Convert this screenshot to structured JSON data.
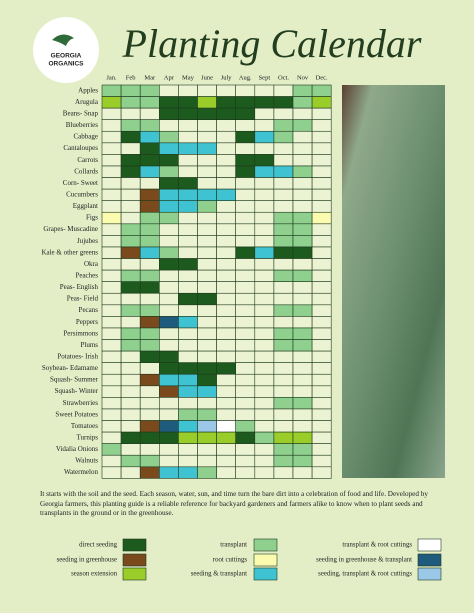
{
  "header": {
    "logo": [
      "GEORGIA",
      "ORGANICS"
    ],
    "title": "Planting Calendar"
  },
  "calendar": {
    "months": [
      "Jan.",
      "Feb",
      "Mar",
      "Apr",
      "May",
      "June",
      "July",
      "Aug.",
      "Sept",
      "Oct.",
      "Nov",
      "Dec."
    ],
    "empty_color": "#ecf3d2",
    "crops": [
      {
        "name": "Apples",
        "cells": [
          1,
          1,
          1,
          null,
          null,
          null,
          null,
          null,
          null,
          null,
          1,
          1
        ]
      },
      {
        "name": "Arugula",
        "cells": [
          6,
          1,
          1,
          0,
          0,
          6,
          0,
          0,
          0,
          0,
          1,
          6
        ]
      },
      {
        "name": "Beans- Snap",
        "cells": [
          null,
          null,
          null,
          0,
          0,
          0,
          0,
          0,
          null,
          null,
          null,
          null
        ]
      },
      {
        "name": "Blueberries",
        "cells": [
          null,
          1,
          1,
          null,
          null,
          null,
          null,
          null,
          null,
          1,
          1,
          null
        ]
      },
      {
        "name": "Cabbage",
        "cells": [
          null,
          0,
          7,
          1,
          null,
          null,
          null,
          0,
          7,
          1,
          null,
          null
        ]
      },
      {
        "name": "Cantaloupes",
        "cells": [
          null,
          null,
          0,
          7,
          7,
          7,
          null,
          null,
          null,
          null,
          null,
          null
        ]
      },
      {
        "name": "Carrots",
        "cells": [
          null,
          0,
          0,
          0,
          null,
          null,
          null,
          0,
          0,
          null,
          null,
          null
        ]
      },
      {
        "name": "Collards",
        "cells": [
          null,
          0,
          7,
          1,
          null,
          null,
          null,
          0,
          7,
          7,
          1,
          null
        ]
      },
      {
        "name": "Corn- Sweet",
        "cells": [
          null,
          null,
          null,
          0,
          0,
          null,
          null,
          null,
          null,
          null,
          null,
          null
        ]
      },
      {
        "name": "Cucumbers",
        "cells": [
          null,
          null,
          3,
          7,
          7,
          7,
          7,
          null,
          null,
          null,
          null,
          null
        ]
      },
      {
        "name": "Eggplant",
        "cells": [
          null,
          null,
          3,
          7,
          7,
          1,
          null,
          null,
          null,
          null,
          null,
          null
        ]
      },
      {
        "name": "Figs",
        "cells": [
          4,
          null,
          1,
          1,
          null,
          null,
          null,
          null,
          null,
          1,
          1,
          4
        ]
      },
      {
        "name": "Grapes- Muscadine",
        "cells": [
          null,
          1,
          1,
          null,
          null,
          null,
          null,
          null,
          null,
          1,
          1,
          null
        ]
      },
      {
        "name": "Jujubes",
        "cells": [
          null,
          1,
          1,
          null,
          null,
          null,
          null,
          null,
          null,
          1,
          1,
          null
        ]
      },
      {
        "name": "Kale & other greens",
        "cells": [
          null,
          3,
          7,
          1,
          null,
          null,
          null,
          0,
          7,
          0,
          0,
          null
        ]
      },
      {
        "name": "Okra",
        "cells": [
          null,
          null,
          null,
          0,
          0,
          null,
          null,
          null,
          null,
          null,
          null,
          null
        ]
      },
      {
        "name": "Peaches",
        "cells": [
          null,
          1,
          1,
          null,
          null,
          null,
          null,
          null,
          null,
          1,
          1,
          null
        ]
      },
      {
        "name": "Peas- English",
        "cells": [
          null,
          0,
          0,
          null,
          null,
          null,
          null,
          null,
          null,
          null,
          null,
          null
        ]
      },
      {
        "name": "Peas- Field",
        "cells": [
          null,
          null,
          null,
          null,
          0,
          0,
          null,
          null,
          null,
          null,
          null,
          null
        ]
      },
      {
        "name": "Pecans",
        "cells": [
          null,
          1,
          1,
          null,
          null,
          null,
          null,
          null,
          null,
          1,
          1,
          null
        ]
      },
      {
        "name": "Peppers",
        "cells": [
          null,
          null,
          3,
          5,
          7,
          null,
          null,
          null,
          null,
          null,
          null,
          null
        ]
      },
      {
        "name": "Persimmons",
        "cells": [
          null,
          1,
          1,
          null,
          null,
          null,
          null,
          null,
          null,
          1,
          1,
          null
        ]
      },
      {
        "name": "Plums",
        "cells": [
          null,
          1,
          1,
          null,
          null,
          null,
          null,
          null,
          null,
          1,
          1,
          null
        ]
      },
      {
        "name": "Potatoes- Irish",
        "cells": [
          null,
          null,
          0,
          0,
          null,
          null,
          null,
          null,
          null,
          null,
          null,
          null
        ]
      },
      {
        "name": "Soybean- Edamame",
        "cells": [
          null,
          null,
          null,
          0,
          0,
          0,
          0,
          null,
          null,
          null,
          null,
          null
        ]
      },
      {
        "name": "Squash- Summer",
        "cells": [
          null,
          null,
          3,
          7,
          7,
          0,
          null,
          null,
          null,
          null,
          null,
          null
        ]
      },
      {
        "name": "Squash- Winter",
        "cells": [
          null,
          null,
          null,
          3,
          7,
          7,
          null,
          null,
          null,
          null,
          null,
          null
        ]
      },
      {
        "name": "Strawberries",
        "cells": [
          null,
          null,
          null,
          null,
          null,
          null,
          null,
          null,
          null,
          1,
          1,
          null
        ]
      },
      {
        "name": "Sweet Potatoes",
        "cells": [
          null,
          null,
          null,
          null,
          1,
          1,
          null,
          null,
          null,
          null,
          null,
          null
        ]
      },
      {
        "name": "Tomatoes",
        "cells": [
          null,
          null,
          3,
          5,
          7,
          8,
          2,
          1,
          null,
          null,
          null,
          null
        ]
      },
      {
        "name": "Turnips",
        "cells": [
          null,
          0,
          0,
          0,
          6,
          6,
          6,
          0,
          1,
          6,
          6,
          null
        ]
      },
      {
        "name": "Vidalia Onions",
        "cells": [
          1,
          null,
          null,
          null,
          null,
          null,
          null,
          null,
          null,
          1,
          1,
          null
        ]
      },
      {
        "name": "Walnuts",
        "cells": [
          null,
          1,
          1,
          null,
          null,
          null,
          null,
          null,
          null,
          1,
          1,
          null
        ]
      },
      {
        "name": "Watermelon",
        "cells": [
          null,
          null,
          3,
          7,
          7,
          1,
          null,
          null,
          null,
          null,
          null,
          null
        ]
      }
    ]
  },
  "description": "It starts with the soil and the seed. Each season, water, sun, and time turn the bare dirt into a celebration of food and life. Developed by Georgia farmers, this planting guide is a reliable reference for backyard gardeners and farmers alike to know when to plant seeds and transplants in the ground or in the greenhouse.",
  "legend": [
    {
      "label": "direct seeding",
      "color": "#1d5a1d"
    },
    {
      "label": "transplant",
      "color": "#8fd08f"
    },
    {
      "label": "transplant & root cuttings",
      "color": "#ffffff"
    },
    {
      "label": "seeding in greenhouse",
      "color": "#7a4a1c"
    },
    {
      "label": "root cuttings",
      "color": "#fbfbb0"
    },
    {
      "label": "seeding in greenhouse & transplant",
      "color": "#1f5b7c"
    },
    {
      "label": "season extension",
      "color": "#9acd2a"
    },
    {
      "label": "seeding & transplant",
      "color": "#3fc3d2"
    },
    {
      "label": "seeding, transplant & root cuttings",
      "color": "#9cc8e8"
    }
  ]
}
